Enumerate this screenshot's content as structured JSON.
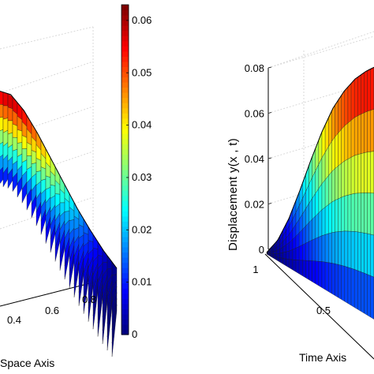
{
  "chart_data": [
    {
      "type": "surface3d",
      "panel": "left",
      "xlabel": "Space Axis",
      "x_ticks": [
        "0.4",
        "0.6",
        "0.8"
      ],
      "x_tick_values": [
        0.4,
        0.6,
        0.8
      ],
      "surface_profile": {
        "x": [
          0.0,
          0.1,
          0.2,
          0.3,
          0.4,
          0.5,
          0.6,
          0.7,
          0.8,
          0.9,
          1.0
        ],
        "z": [
          0.05,
          0.058,
          0.062,
          0.058,
          0.05,
          0.04,
          0.03,
          0.02,
          0.012,
          0.005,
          0.0
        ]
      }
    },
    {
      "type": "colorbar",
      "ticks": [
        "0",
        "0.01",
        "0.02",
        "0.03",
        "0.04",
        "0.05",
        "0.06"
      ],
      "tick_values": [
        0,
        0.01,
        0.02,
        0.03,
        0.04,
        0.05,
        0.06
      ],
      "range": [
        0,
        0.063
      ],
      "colormap": "jet"
    },
    {
      "type": "surface3d",
      "panel": "right",
      "xlabel": "Time Axis",
      "zlabel": "Displacement  y(x , t)",
      "z_ticks": [
        "0",
        "0.02",
        "0.04",
        "0.06",
        "0.08"
      ],
      "z_tick_values": [
        0,
        0.02,
        0.04,
        0.06,
        0.08
      ],
      "zlim": [
        0,
        0.08
      ],
      "t_ticks": [
        "1",
        "0.5"
      ],
      "t_tick_values": [
        1,
        0.5
      ],
      "surface_profile": {
        "t": [
          1.0,
          0.9,
          0.8,
          0.7,
          0.6,
          0.5,
          0.4,
          0.3,
          0.2,
          0.1,
          0.0
        ],
        "z": [
          0.0,
          0.003,
          0.01,
          0.02,
          0.031,
          0.041,
          0.049,
          0.054,
          0.057,
          0.058,
          0.058
        ]
      }
    }
  ]
}
